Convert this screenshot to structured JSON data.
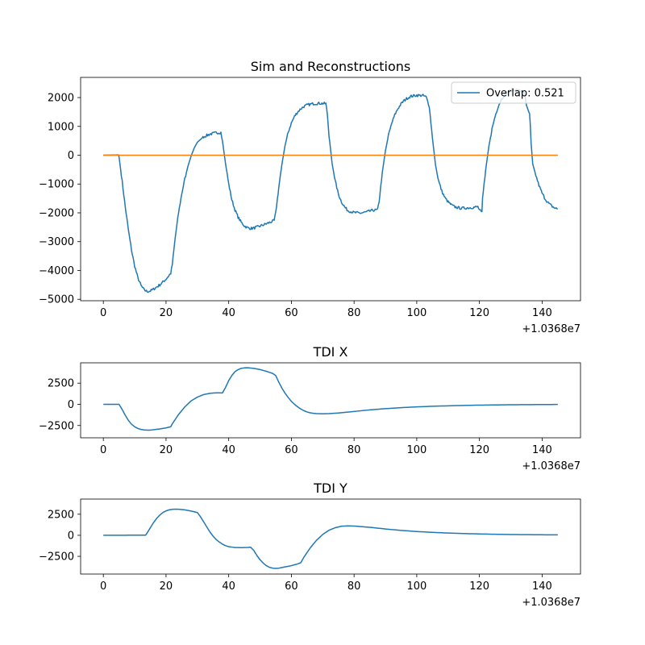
{
  "chart_data": [
    {
      "type": "line",
      "title": "Sim and Reconstructions",
      "x_offset_label": "+1.0368e7",
      "xlim": [
        -7.25,
        152.25
      ],
      "ylim": [
        -5050,
        2700
      ],
      "xticks": [
        0,
        20,
        40,
        60,
        80,
        100,
        120,
        140
      ],
      "yticks": [
        -5000,
        -4000,
        -3000,
        -2000,
        -1000,
        0,
        1000,
        2000
      ],
      "ytick_labels": [
        "−5000",
        "−4000",
        "−3000",
        "−2000",
        "−1000",
        "0",
        "1000",
        "2000"
      ],
      "legend": {
        "placement": "upper right",
        "entries": [
          "Overlap: 0.521"
        ]
      },
      "series": [
        {
          "name": "Overlap: 0.521",
          "color": "#1f77b4",
          "noisy": true,
          "points": [
            [
              0,
              0
            ],
            [
              4.8,
              10
            ],
            [
              5,
              -50
            ],
            [
              6,
              -900
            ],
            [
              7,
              -1800
            ],
            [
              8,
              -2600
            ],
            [
              9,
              -3300
            ],
            [
              10,
              -3850
            ],
            [
              11,
              -4250
            ],
            [
              12,
              -4520
            ],
            [
              13,
              -4670
            ],
            [
              14,
              -4730
            ],
            [
              15,
              -4710
            ],
            [
              16,
              -4650
            ],
            [
              18,
              -4500
            ],
            [
              20,
              -4300
            ],
            [
              21.5,
              -4100
            ],
            [
              22,
              -3800
            ],
            [
              23,
              -2800
            ],
            [
              24,
              -2000
            ],
            [
              25,
              -1350
            ],
            [
              26,
              -820
            ],
            [
              27,
              -380
            ],
            [
              28,
              -30
            ],
            [
              29,
              250
            ],
            [
              30,
              450
            ],
            [
              32,
              640
            ],
            [
              34,
              730
            ],
            [
              36,
              780
            ],
            [
              37.5,
              790
            ],
            [
              38,
              500
            ],
            [
              39,
              -300
            ],
            [
              40,
              -1000
            ],
            [
              41,
              -1550
            ],
            [
              42,
              -1900
            ],
            [
              43,
              -2150
            ],
            [
              44,
              -2330
            ],
            [
              45,
              -2450
            ],
            [
              46,
              -2520
            ],
            [
              47,
              -2540
            ],
            [
              48,
              -2530
            ],
            [
              50,
              -2460
            ],
            [
              52,
              -2380
            ],
            [
              54.5,
              -2270
            ],
            [
              55,
              -2000
            ],
            [
              56,
              -1100
            ],
            [
              57,
              -300
            ],
            [
              58,
              350
            ],
            [
              59,
              800
            ],
            [
              60,
              1120
            ],
            [
              61,
              1350
            ],
            [
              62,
              1500
            ],
            [
              63,
              1610
            ],
            [
              64,
              1690
            ],
            [
              65,
              1740
            ],
            [
              67,
              1790
            ],
            [
              69,
              1800
            ],
            [
              71,
              1790
            ],
            [
              71.5,
              1400
            ],
            [
              72,
              700
            ],
            [
              73,
              -300
            ],
            [
              74,
              -900
            ],
            [
              75,
              -1350
            ],
            [
              76,
              -1620
            ],
            [
              77,
              -1800
            ],
            [
              78,
              -1920
            ],
            [
              80,
              -1990
            ],
            [
              82,
              -2010
            ],
            [
              84,
              -1970
            ],
            [
              86,
              -1910
            ],
            [
              87.5,
              -1900
            ],
            [
              88,
              -1600
            ],
            [
              89,
              -600
            ],
            [
              90,
              150
            ],
            [
              91,
              700
            ],
            [
              92,
              1100
            ],
            [
              93,
              1400
            ],
            [
              94,
              1620
            ],
            [
              95,
              1780
            ],
            [
              96,
              1900
            ],
            [
              97,
              1980
            ],
            [
              98,
              2040
            ],
            [
              100,
              2080
            ],
            [
              102,
              2070
            ],
            [
              103,
              2020
            ],
            [
              104,
              1700
            ],
            [
              105,
              600
            ],
            [
              106,
              -350
            ],
            [
              107,
              -900
            ],
            [
              108,
              -1250
            ],
            [
              109,
              -1480
            ],
            [
              110,
              -1620
            ],
            [
              111,
              -1720
            ],
            [
              112,
              -1790
            ],
            [
              114,
              -1840
            ],
            [
              116,
              -1830
            ],
            [
              118,
              -1810
            ],
            [
              119.5,
              -1790
            ],
            [
              120,
              -1900
            ],
            [
              120.8,
              -2000
            ],
            [
              121,
              -1500
            ],
            [
              122,
              -500
            ],
            [
              123,
              300
            ],
            [
              124,
              900
            ],
            [
              125,
              1350
            ],
            [
              126,
              1700
            ],
            [
              127,
              1940
            ],
            [
              128,
              2100
            ],
            [
              129,
              2200
            ],
            [
              130,
              2250
            ],
            [
              131,
              2270
            ],
            [
              132,
              2260
            ],
            [
              133,
              2230
            ],
            [
              134,
              2180
            ],
            [
              134.5,
              2100
            ],
            [
              135,
              1700
            ],
            [
              136,
              1400
            ],
            [
              136.2,
              1100
            ],
            [
              136.5,
              400
            ],
            [
              137,
              -300
            ],
            [
              138,
              -700
            ],
            [
              139,
              -1050
            ],
            [
              140,
              -1320
            ],
            [
              141,
              -1520
            ],
            [
              142,
              -1660
            ],
            [
              143,
              -1760
            ],
            [
              144,
              -1830
            ],
            [
              145,
              -1870
            ]
          ]
        },
        {
          "name": "",
          "color": "#ff7f0e",
          "points": [
            [
              0,
              0
            ],
            [
              145,
              0
            ]
          ]
        }
      ]
    },
    {
      "type": "line",
      "title": "TDI X",
      "x_offset_label": "+1.0368e7",
      "xlim": [
        -7.25,
        152.25
      ],
      "ylim": [
        -3950,
        4900
      ],
      "xticks": [
        0,
        20,
        40,
        60,
        80,
        100,
        120,
        140
      ],
      "yticks": [
        -2500,
        0,
        2500
      ],
      "ytick_labels": [
        "−2500",
        "0",
        "2500"
      ],
      "series": [
        {
          "name": "",
          "color": "#1f77b4",
          "points": [
            [
              0,
              0
            ],
            [
              5,
              0
            ],
            [
              6,
              -600
            ],
            [
              7,
              -1300
            ],
            [
              8,
              -1900
            ],
            [
              9,
              -2350
            ],
            [
              10,
              -2650
            ],
            [
              11,
              -2850
            ],
            [
              12,
              -2960
            ],
            [
              13,
              -3020
            ],
            [
              14,
              -3040
            ],
            [
              15,
              -3040
            ],
            [
              16,
              -3000
            ],
            [
              18,
              -2900
            ],
            [
              20,
              -2780
            ],
            [
              21.5,
              -2650
            ],
            [
              22,
              -2300
            ],
            [
              24,
              -1200
            ],
            [
              26,
              -300
            ],
            [
              28,
              400
            ],
            [
              30,
              850
            ],
            [
              32,
              1150
            ],
            [
              34,
              1300
            ],
            [
              36,
              1360
            ],
            [
              37,
              1360
            ],
            [
              38,
              1340
            ],
            [
              39,
              2000
            ],
            [
              40,
              2800
            ],
            [
              41,
              3400
            ],
            [
              42,
              3850
            ],
            [
              43,
              4100
            ],
            [
              44,
              4250
            ],
            [
              45,
              4300
            ],
            [
              46,
              4320
            ],
            [
              48,
              4250
            ],
            [
              50,
              4100
            ],
            [
              52,
              3900
            ],
            [
              54,
              3650
            ],
            [
              55,
              3400
            ],
            [
              56,
              2600
            ],
            [
              57,
              1900
            ],
            [
              58,
              1300
            ],
            [
              59,
              800
            ],
            [
              60,
              350
            ],
            [
              61,
              0
            ],
            [
              62,
              -300
            ],
            [
              63,
              -550
            ],
            [
              64,
              -750
            ],
            [
              65,
              -900
            ],
            [
              66,
              -1000
            ],
            [
              67,
              -1060
            ],
            [
              68,
              -1100
            ],
            [
              70,
              -1120
            ],
            [
              72,
              -1100
            ],
            [
              75,
              -1020
            ],
            [
              80,
              -840
            ],
            [
              85,
              -660
            ],
            [
              90,
              -510
            ],
            [
              95,
              -390
            ],
            [
              100,
              -300
            ],
            [
              105,
              -230
            ],
            [
              110,
              -175
            ],
            [
              115,
              -130
            ],
            [
              120,
              -95
            ],
            [
              125,
              -70
            ],
            [
              130,
              -50
            ],
            [
              135,
              -35
            ],
            [
              140,
              -25
            ],
            [
              145,
              -15
            ]
          ]
        }
      ]
    },
    {
      "type": "line",
      "title": "TDI Y",
      "x_offset_label": "+1.0368e7",
      "xlim": [
        -7.25,
        152.25
      ],
      "ylim": [
        -4600,
        4300
      ],
      "xticks": [
        0,
        20,
        40,
        60,
        80,
        100,
        120,
        140
      ],
      "yticks": [
        -2500,
        0,
        2500
      ],
      "ytick_labels": [
        "−2500",
        "0",
        "2500"
      ],
      "series": [
        {
          "name": "",
          "color": "#1f77b4",
          "points": [
            [
              0,
              0
            ],
            [
              13,
              20
            ],
            [
              13.5,
              20
            ],
            [
              14,
              300
            ],
            [
              15,
              900
            ],
            [
              16,
              1500
            ],
            [
              17,
              2000
            ],
            [
              18,
              2400
            ],
            [
              19,
              2700
            ],
            [
              20,
              2900
            ],
            [
              21,
              3020
            ],
            [
              22,
              3080
            ],
            [
              23,
              3100
            ],
            [
              24,
              3090
            ],
            [
              26,
              3020
            ],
            [
              28,
              2880
            ],
            [
              30,
              2700
            ],
            [
              31,
              2200
            ],
            [
              32,
              1600
            ],
            [
              33,
              1000
            ],
            [
              34,
              400
            ],
            [
              35,
              -100
            ],
            [
              36,
              -500
            ],
            [
              37,
              -800
            ],
            [
              38,
              -1050
            ],
            [
              39,
              -1230
            ],
            [
              40,
              -1350
            ],
            [
              42,
              -1450
            ],
            [
              44,
              -1460
            ],
            [
              46,
              -1440
            ],
            [
              47,
              -1420
            ],
            [
              48,
              -1800
            ],
            [
              49,
              -2400
            ],
            [
              50,
              -2900
            ],
            [
              51,
              -3300
            ],
            [
              52,
              -3600
            ],
            [
              53,
              -3800
            ],
            [
              54,
              -3900
            ],
            [
              55,
              -3930
            ],
            [
              56,
              -3900
            ],
            [
              58,
              -3750
            ],
            [
              60,
              -3600
            ],
            [
              62,
              -3400
            ],
            [
              63,
              -3250
            ],
            [
              64,
              -2600
            ],
            [
              66,
              -1500
            ],
            [
              68,
              -600
            ],
            [
              70,
              100
            ],
            [
              72,
              600
            ],
            [
              74,
              900
            ],
            [
              76,
              1080
            ],
            [
              78,
              1120
            ],
            [
              80,
              1100
            ],
            [
              85,
              950
            ],
            [
              90,
              750
            ],
            [
              95,
              580
            ],
            [
              100,
              450
            ],
            [
              105,
              350
            ],
            [
              110,
              270
            ],
            [
              115,
              210
            ],
            [
              120,
              160
            ],
            [
              125,
              120
            ],
            [
              130,
              95
            ],
            [
              135,
              75
            ],
            [
              140,
              60
            ],
            [
              145,
              50
            ]
          ]
        }
      ]
    }
  ]
}
